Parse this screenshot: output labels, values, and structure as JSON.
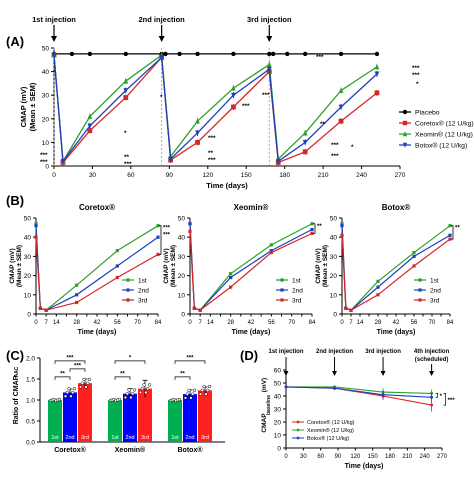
{
  "panels": {
    "A": {
      "letter": "(A)"
    },
    "B": {
      "letter": "(B)"
    },
    "C": {
      "letter": "(C)"
    },
    "D": {
      "letter": "(D)"
    }
  },
  "colors": {
    "placebo": "#000000",
    "coretox": "#d62728",
    "xeomin": "#2ca02c",
    "botox": "#1f3fbf",
    "first": "#2ca02c",
    "second": "#1f3fbf",
    "third": "#d62728",
    "bar_green": "#00b050",
    "bar_blue": "#0000ff",
    "bar_red": "#ff2020"
  },
  "chart_data": [
    {
      "id": "A",
      "type": "line",
      "title": "",
      "xlabel": "Time (days)",
      "ylabel": "CMAP (mV)",
      "ylabel2": "(Mean ± SEM)",
      "xlim": [
        0,
        270
      ],
      "ylim": [
        0,
        50
      ],
      "xticks": [
        0,
        30,
        60,
        90,
        120,
        150,
        180,
        210,
        240,
        270
      ],
      "yticks": [
        0,
        10,
        20,
        30,
        40,
        50
      ],
      "injections": [
        {
          "label": "1st injection",
          "day": 0
        },
        {
          "label": "2nd injection",
          "day": 84
        },
        {
          "label": "3rd injection",
          "day": 168
        }
      ],
      "legend": "right",
      "series": [
        {
          "name": "Placebo",
          "key": "placebo",
          "marker": "circle",
          "x": [
            0,
            14,
            28,
            56,
            84,
            87,
            98,
            112,
            140,
            168,
            171,
            182,
            196,
            224,
            252
          ],
          "y": [
            47.5,
            47.5,
            47.5,
            47.5,
            47.5,
            47.5,
            47.5,
            47.5,
            47.5,
            47.5,
            47.5,
            47.5,
            47.5,
            47.5,
            47.5
          ]
        },
        {
          "name": "Coretox® (12 U/kg)",
          "key": "coretox",
          "marker": "square",
          "x": [
            0,
            7,
            28,
            56,
            84,
            91,
            112,
            140,
            168,
            175,
            196,
            224,
            252
          ],
          "y": [
            47,
            1.5,
            15,
            29,
            46,
            2.5,
            10,
            25,
            40,
            1.5,
            6,
            19,
            31
          ]
        },
        {
          "name": "Xeomin® (12 U/kg)",
          "key": "xeomin",
          "marker": "triangle",
          "x": [
            0,
            7,
            28,
            56,
            84,
            91,
            112,
            140,
            168,
            175,
            196,
            224,
            252
          ],
          "y": [
            47,
            2,
            21,
            36,
            47,
            4,
            19,
            33,
            43,
            3,
            14,
            32,
            42
          ]
        },
        {
          "name": "Botox® (12 U/kg)",
          "key": "botox",
          "marker": "triangle-down",
          "x": [
            0,
            7,
            28,
            56,
            84,
            91,
            112,
            140,
            168,
            175,
            196,
            224,
            252
          ],
          "y": [
            47,
            2,
            17,
            32,
            46,
            3,
            14,
            30,
            41,
            2,
            10,
            25,
            39
          ]
        }
      ],
      "annotations": [
        "***",
        "***",
        "*",
        "*",
        "***",
        "***",
        "**",
        "***",
        "**",
        "***",
        "***",
        "***",
        "**",
        "***",
        "*",
        "***"
      ]
    },
    {
      "id": "B1",
      "type": "line",
      "title": "Coretox®",
      "xlabel": "Time (days)",
      "ylabel": "CMAP (mV)",
      "ylabel2": "(Mean ± SEM)",
      "xlim": [
        0,
        84
      ],
      "ylim": [
        0,
        50
      ],
      "xticks": [
        0,
        7,
        14,
        21,
        28,
        35,
        42,
        49,
        56,
        63,
        70,
        77,
        84
      ],
      "xticklabels": [
        "0",
        "7",
        "14",
        "28",
        "42",
        "56",
        "70",
        "84"
      ],
      "yticks": [
        0,
        10,
        20,
        30,
        40,
        50
      ],
      "legend": "bottom-right",
      "significance": [
        "***",
        "***"
      ],
      "series": [
        {
          "name": "1st",
          "key": "first",
          "x": [
            0,
            3,
            7,
            28,
            56,
            84
          ],
          "y": [
            47,
            3,
            2,
            15,
            33,
            46
          ]
        },
        {
          "name": "2nd",
          "key": "second",
          "x": [
            0,
            3,
            7,
            28,
            56,
            84
          ],
          "y": [
            46,
            3,
            2,
            10,
            25,
            40
          ]
        },
        {
          "name": "3rd",
          "key": "third",
          "x": [
            0,
            3,
            7,
            28,
            56,
            84
          ],
          "y": [
            40,
            3,
            2,
            6,
            19,
            31
          ]
        }
      ]
    },
    {
      "id": "B2",
      "type": "line",
      "title": "Xeomin®",
      "xlabel": "Time (days)",
      "ylabel": "CMAP (mV)",
      "ylabel2": "(Mean ± SEM)",
      "xlim": [
        0,
        84
      ],
      "ylim": [
        0,
        50
      ],
      "xticks": [
        0,
        7,
        14,
        21,
        28,
        35,
        42,
        49,
        56,
        63,
        70,
        77,
        84
      ],
      "xticklabels": [
        "0",
        "7",
        "14",
        "28",
        "42",
        "56",
        "70",
        "84"
      ],
      "yticks": [
        0,
        10,
        20,
        30,
        40,
        50
      ],
      "legend": "bottom-right",
      "significance": [
        "**"
      ],
      "series": [
        {
          "name": "1st",
          "key": "first",
          "x": [
            0,
            3,
            7,
            28,
            56,
            84
          ],
          "y": [
            47,
            3,
            2,
            21,
            36,
            47
          ]
        },
        {
          "name": "2nd",
          "key": "second",
          "x": [
            0,
            3,
            7,
            28,
            56,
            84
          ],
          "y": [
            47,
            3,
            2,
            19,
            33,
            44
          ]
        },
        {
          "name": "3rd",
          "key": "third",
          "x": [
            0,
            3,
            7,
            28,
            56,
            84
          ],
          "y": [
            43,
            3,
            2,
            14,
            32,
            42
          ]
        }
      ]
    },
    {
      "id": "B3",
      "type": "line",
      "title": "Botox®",
      "xlabel": "Time (days)",
      "ylabel": "CMAP (mV)",
      "ylabel2": "(Mean ± SEM)",
      "xlim": [
        0,
        84
      ],
      "ylim": [
        0,
        50
      ],
      "xticks": [
        0,
        7,
        14,
        21,
        28,
        35,
        42,
        49,
        56,
        63,
        70,
        77,
        84
      ],
      "xticklabels": [
        "0",
        "7",
        "14",
        "28",
        "42",
        "56",
        "70",
        "84"
      ],
      "yticks": [
        0,
        10,
        20,
        30,
        40,
        50
      ],
      "legend": "bottom-right",
      "significance": [
        "**"
      ],
      "series": [
        {
          "name": "1st",
          "key": "first",
          "x": [
            0,
            3,
            7,
            28,
            56,
            84
          ],
          "y": [
            47,
            3,
            2,
            17,
            32,
            46
          ]
        },
        {
          "name": "2nd",
          "key": "second",
          "x": [
            0,
            3,
            7,
            28,
            56,
            84
          ],
          "y": [
            46,
            3,
            2,
            14,
            30,
            41
          ]
        },
        {
          "name": "3rd",
          "key": "third",
          "x": [
            0,
            3,
            7,
            28,
            56,
            84
          ],
          "y": [
            41,
            3,
            2,
            10,
            25,
            39
          ]
        }
      ]
    },
    {
      "id": "C",
      "type": "bar",
      "title": "",
      "ylabel": "Ratio of CMAP",
      "ylabel_sub": "AAC",
      "ylim": [
        0,
        2.0
      ],
      "yticks": [
        0.0,
        0.5,
        1.0,
        1.5,
        2.0
      ],
      "yticklabels": [
        "0.0",
        "0.5",
        "1.0",
        "1.5",
        "2.0"
      ],
      "groups": [
        "Coretox®",
        "Xeomin®",
        "Botox®"
      ],
      "bar_labels": [
        "1st",
        "2nd",
        "3rd"
      ],
      "values": [
        [
          1.0,
          1.18,
          1.4
        ],
        [
          1.0,
          1.15,
          1.27
        ],
        [
          1.0,
          1.14,
          1.23
        ]
      ],
      "errors": [
        [
          0.0,
          0.08,
          0.1
        ],
        [
          0.0,
          0.12,
          0.2
        ],
        [
          0.0,
          0.1,
          0.08
        ]
      ],
      "significance": [
        {
          "group": 0,
          "pair": [
            0,
            1
          ],
          "label": "**"
        },
        {
          "group": 0,
          "pair": [
            0,
            2
          ],
          "label": "***"
        },
        {
          "group": 0,
          "pair": [
            1,
            2
          ],
          "label": "***"
        },
        {
          "group": 1,
          "pair": [
            0,
            1
          ],
          "label": "**"
        },
        {
          "group": 1,
          "pair": [
            0,
            2
          ],
          "label": "*"
        },
        {
          "group": 2,
          "pair": [
            0,
            1
          ],
          "label": "**"
        },
        {
          "group": 2,
          "pair": [
            0,
            2
          ],
          "label": "***"
        }
      ]
    },
    {
      "id": "D",
      "type": "line",
      "title": "",
      "xlabel": "Time (days)",
      "ylabel": "CMAP",
      "ylabel_sub": "baseline",
      "ylabel_unit": " (mV)",
      "xlim": [
        0,
        270
      ],
      "ylim": [
        0,
        60
      ],
      "xticks": [
        0,
        30,
        60,
        90,
        120,
        150,
        180,
        210,
        240,
        270
      ],
      "yticks": [
        0,
        10,
        20,
        30,
        40,
        50,
        60
      ],
      "injections": [
        {
          "label": "1st injection",
          "day": 0
        },
        {
          "label": "2nd injection",
          "day": 84
        },
        {
          "label": "3rd injection",
          "day": 168
        },
        {
          "label": "4th injection",
          "label2": "(scheduled)",
          "day": 252
        }
      ],
      "legend": "bottom-left",
      "significance": [
        "*",
        "***"
      ],
      "series": [
        {
          "name": "Coretox® (12 U/kg)",
          "key": "coretox",
          "x": [
            0,
            84,
            168,
            252
          ],
          "y": [
            47,
            46,
            40,
            33
          ],
          "err": [
            1,
            1.5,
            3,
            5
          ]
        },
        {
          "name": "Xeomin® (12 U/kg)",
          "key": "xeomin",
          "x": [
            0,
            84,
            168,
            252
          ],
          "y": [
            47,
            47,
            43,
            42
          ],
          "err": [
            1,
            1,
            3,
            3
          ]
        },
        {
          "name": "Botox® (12 U/kg)",
          "key": "botox",
          "x": [
            0,
            84,
            168,
            252
          ],
          "y": [
            47,
            46,
            41,
            39
          ],
          "err": [
            1,
            1,
            3,
            3
          ]
        }
      ]
    }
  ]
}
